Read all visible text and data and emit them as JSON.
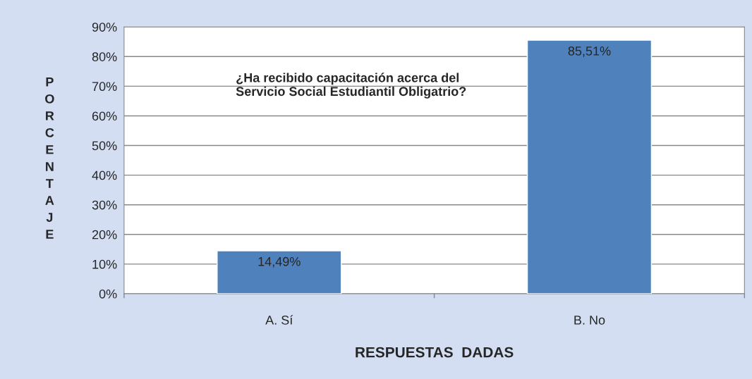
{
  "chart_data": {
    "type": "bar",
    "title": "¿Ha recibido capacitación acerca del\nServicio Social Estudiantil Obligatrio?",
    "xlabel": "RESPUESTAS  DADAS",
    "ylabel": "PORCENTAJE",
    "categories": [
      "A. Sí",
      "B. No"
    ],
    "values": [
      14.49,
      85.51
    ],
    "color": "#4f81bd",
    "value_labels": [
      "14,49%",
      "85,51%"
    ],
    "ylim": [
      0,
      90
    ],
    "yticks": [
      {
        "value": 0,
        "label": "0%"
      },
      {
        "value": 10,
        "label": "10%"
      },
      {
        "value": 20,
        "label": "20%"
      },
      {
        "value": 30,
        "label": "30%"
      },
      {
        "value": 40,
        "label": "40%"
      },
      {
        "value": 50,
        "label": "50%"
      },
      {
        "value": 60,
        "label": "60%"
      },
      {
        "value": 70,
        "label": "70%"
      },
      {
        "value": 80,
        "label": "80%"
      },
      {
        "value": 90,
        "label": "90%"
      }
    ],
    "grid": "y"
  }
}
